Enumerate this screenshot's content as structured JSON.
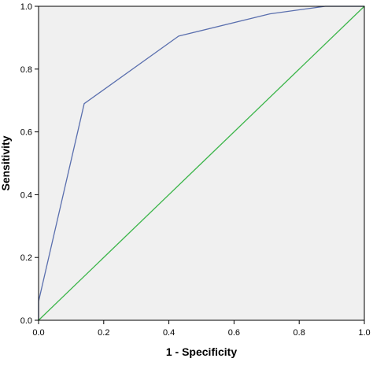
{
  "chart_data": {
    "type": "line",
    "title": "",
    "xlabel": "1 - Specificity",
    "ylabel": "Sensitivity",
    "xlim": [
      0,
      1
    ],
    "ylim": [
      0,
      1
    ],
    "x_ticks": [
      "0.0",
      "0.2",
      "0.4",
      "0.6",
      "0.8",
      "1.0"
    ],
    "y_ticks": [
      "0.0",
      "0.2",
      "0.4",
      "0.6",
      "0.8",
      "1.0"
    ],
    "grid": false,
    "legend": "none",
    "plot_background": "#f0f0f0",
    "series": [
      {
        "color": "#5a6fae",
        "x": [
          0.0,
          0.0,
          0.14,
          0.43,
          0.71,
          0.88,
          1.0
        ],
        "y": [
          0.0,
          0.06,
          0.69,
          0.905,
          0.976,
          1.0,
          1.0
        ]
      },
      {
        "color": "#3cb54a",
        "x": [
          0.0,
          1.0
        ],
        "y": [
          0.0,
          1.0
        ]
      }
    ]
  }
}
